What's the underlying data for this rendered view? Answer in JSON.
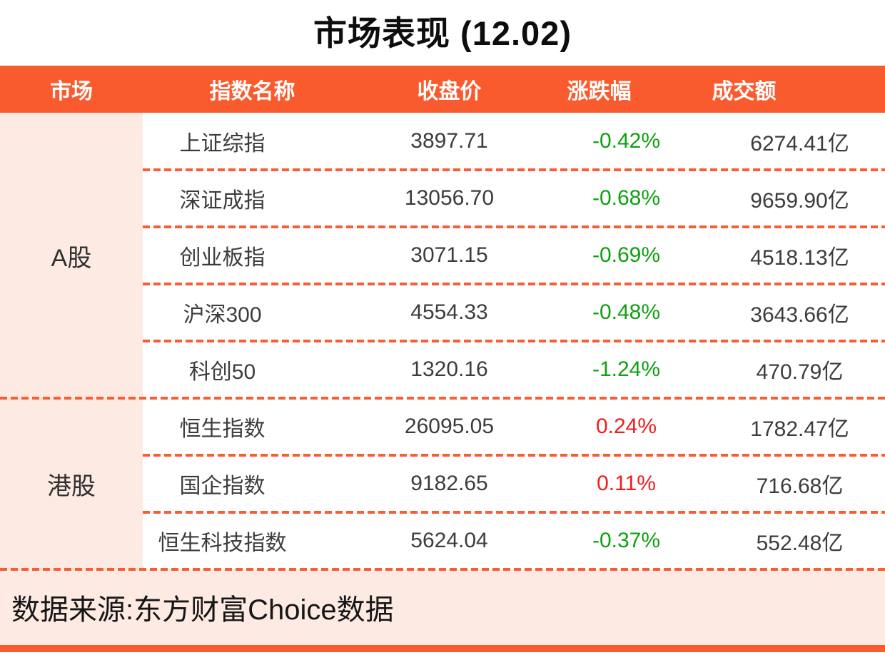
{
  "chart_data": {
    "type": "table",
    "title": "市场表现 (12.02)",
    "columns": [
      "市场",
      "指数名称",
      "收盘价",
      "涨跌幅",
      "成交额"
    ],
    "groups": [
      {
        "market": "A股",
        "rows": [
          {
            "name": "上证综指",
            "close": "3897.71",
            "change": "-0.42%",
            "direction": "down",
            "turnover": "6274.41亿"
          },
          {
            "name": "深证成指",
            "close": "13056.70",
            "change": "-0.68%",
            "direction": "down",
            "turnover": "9659.90亿"
          },
          {
            "name": "创业板指",
            "close": "3071.15",
            "change": "-0.69%",
            "direction": "down",
            "turnover": "4518.13亿"
          },
          {
            "name": "沪深300",
            "close": "4554.33",
            "change": "-0.48%",
            "direction": "down",
            "turnover": "3643.66亿"
          },
          {
            "name": "科创50",
            "close": "1320.16",
            "change": "-1.24%",
            "direction": "down",
            "turnover": "470.79亿"
          }
        ]
      },
      {
        "market": "港股",
        "rows": [
          {
            "name": "恒生指数",
            "close": "26095.05",
            "change": "0.24%",
            "direction": "up",
            "turnover": "1782.47亿"
          },
          {
            "name": "国企指数",
            "close": "9182.65",
            "change": "0.11%",
            "direction": "up",
            "turnover": "716.68亿"
          },
          {
            "name": "恒生科技指数",
            "close": "5624.04",
            "change": "-0.37%",
            "direction": "down",
            "turnover": "552.48亿"
          }
        ]
      }
    ],
    "legend": "red = up, green = down (Chinese market convention)"
  },
  "footer": {
    "source_text": "数据来源:东方财富Choice数据"
  },
  "colors": {
    "accent_orange": "#fa5b2e",
    "dash_orange": "#fb5c33",
    "market_column_bg": "#fdeae3",
    "footer_bg": "#fdeae3",
    "up_red": "#f21c1c",
    "down_green": "#10a010",
    "title_text": "#0d0d0d",
    "body_text": "#3c3c3c"
  }
}
